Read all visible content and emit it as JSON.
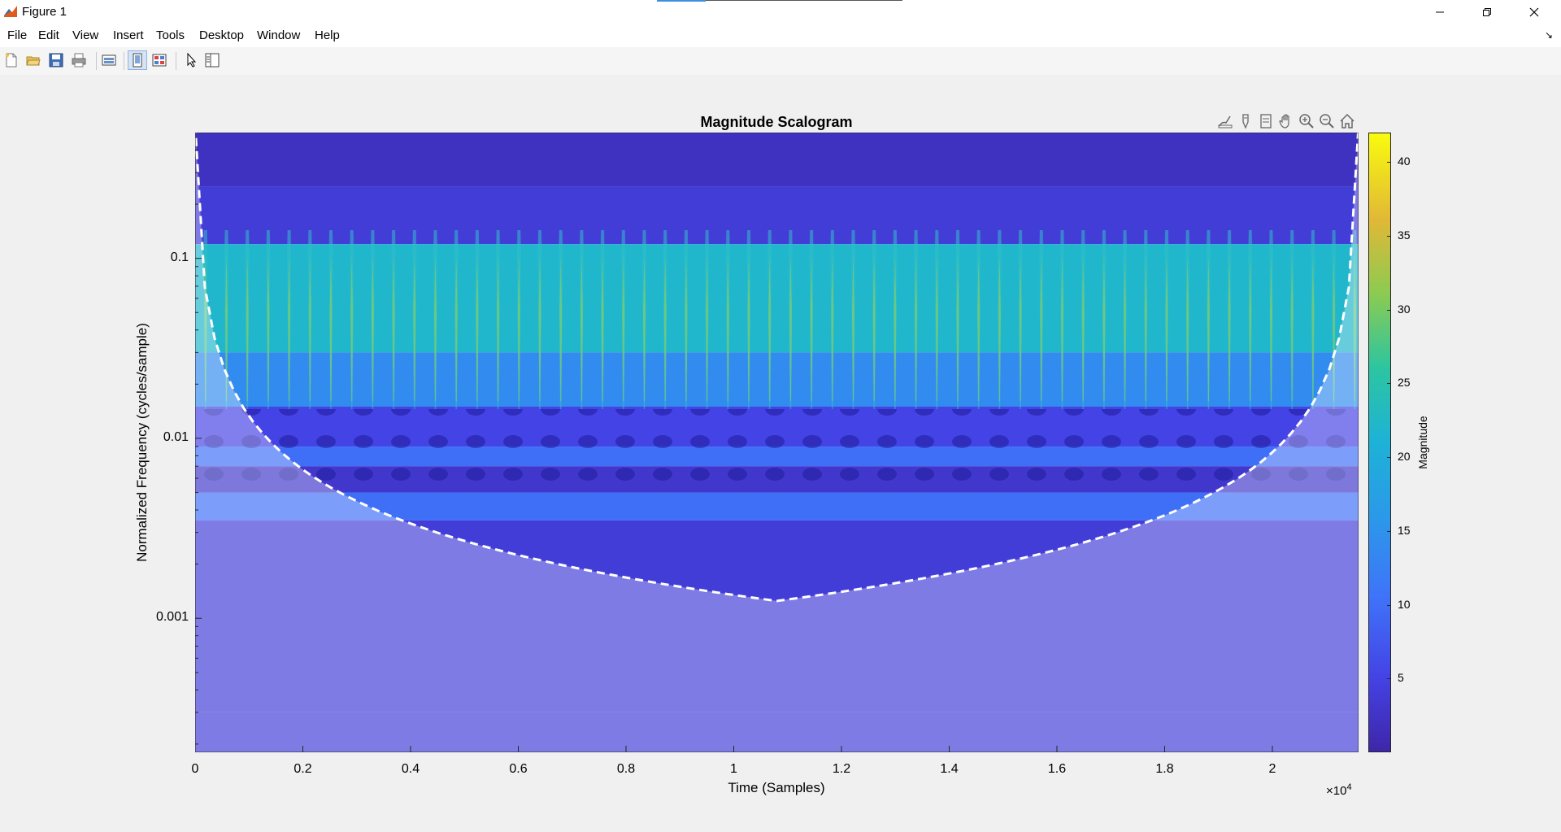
{
  "window": {
    "title": "Figure 1"
  },
  "menubar": {
    "items": [
      "File",
      "Edit",
      "View",
      "Insert",
      "Tools",
      "Desktop",
      "Window",
      "Help"
    ]
  },
  "toolbar": {
    "buttons": [
      "new-figure",
      "open-file",
      "save-figure",
      "print-figure",
      "link-plot",
      "dock-figure",
      "property-editor",
      "edit-plot",
      "plot-browser"
    ]
  },
  "axes_toolbar": {
    "buttons": [
      "brush",
      "data-tips",
      "restore",
      "pan",
      "zoom-in",
      "zoom-out",
      "home"
    ]
  },
  "chart_data": {
    "type": "heatmap",
    "title": "Magnitude Scalogram",
    "xlabel": "Time (Samples)",
    "ylabel": "Normalized Frequency  (cycles/sample)",
    "x_exponent_label": "×10",
    "x_exponent_power": "4",
    "xlim": [
      0,
      2.16
    ],
    "x_ticks": [
      0,
      0.2,
      0.4,
      0.6,
      0.8,
      1,
      1.2,
      1.4,
      1.6,
      1.8,
      2
    ],
    "x_tick_labels": [
      "0",
      "0.2",
      "0.4",
      "0.6",
      "0.8",
      "1",
      "1.2",
      "1.4",
      "1.6",
      "1.8",
      "2"
    ],
    "y_scale": "log",
    "ylim": [
      0.00018,
      0.5
    ],
    "y_ticks": [
      0.1,
      0.01,
      0.001
    ],
    "y_tick_labels": [
      "0.1",
      "0.01",
      "0.001"
    ],
    "colorbar": {
      "label": "Magnitude",
      "colormap": "parula",
      "range": [
        0,
        42
      ],
      "ticks": [
        5,
        10,
        15,
        20,
        25,
        30,
        35,
        40
      ],
      "tick_labels": [
        "5",
        "10",
        "15",
        "20",
        "25",
        "30",
        "35",
        "40"
      ]
    },
    "cone_of_influence": "white dashed line",
    "peak_magnitude_approx": 40,
    "bands": [
      {
        "freq_high": 0.5,
        "freq_low": 0.25,
        "magnitude": 2
      },
      {
        "freq_high": 0.25,
        "freq_low": 0.12,
        "magnitude": 4
      },
      {
        "freq_high": 0.12,
        "freq_low": 0.03,
        "magnitude": 22
      },
      {
        "freq_high": 0.03,
        "freq_low": 0.015,
        "magnitude": 14
      },
      {
        "freq_high": 0.015,
        "freq_low": 0.009,
        "magnitude": 5
      },
      {
        "freq_high": 0.009,
        "freq_low": 0.007,
        "magnitude": 10
      },
      {
        "freq_high": 0.007,
        "freq_low": 0.005,
        "magnitude": 3
      },
      {
        "freq_high": 0.005,
        "freq_low": 0.0035,
        "magnitude": 10
      },
      {
        "freq_high": 0.0035,
        "freq_low": 0.0003,
        "magnitude": 4
      }
    ]
  }
}
